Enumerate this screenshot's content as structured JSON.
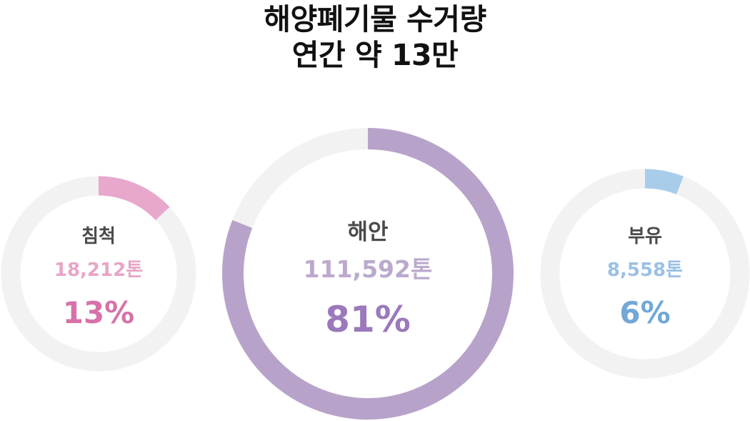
{
  "title": {
    "line1": "해양폐기물 수거량",
    "line2": "연간 약 13만"
  },
  "chart_data": {
    "type": "pie",
    "title": "해양폐기물 수거량 연간 약 13만",
    "track_color": "#f2f2f2",
    "series": [
      {
        "name": "침척",
        "value": 18212,
        "value_label": "18,212톤",
        "percent": 13,
        "percent_label": "13%",
        "color": "#e7a8cc",
        "value_color": "#e8a5c7",
        "percent_color": "#d772a9"
      },
      {
        "name": "해안",
        "value": 111592,
        "value_label": "111,592톤",
        "percent": 81,
        "percent_label": "81%",
        "color": "#b7a3ca",
        "value_color": "#bbaacd",
        "percent_color": "#9b79bc"
      },
      {
        "name": "부유",
        "value": 8558,
        "value_label": "8,558톤",
        "percent": 6,
        "percent_label": "6%",
        "color": "#a9cceb",
        "value_color": "#9bc0e4",
        "percent_color": "#72a8d7"
      }
    ]
  }
}
